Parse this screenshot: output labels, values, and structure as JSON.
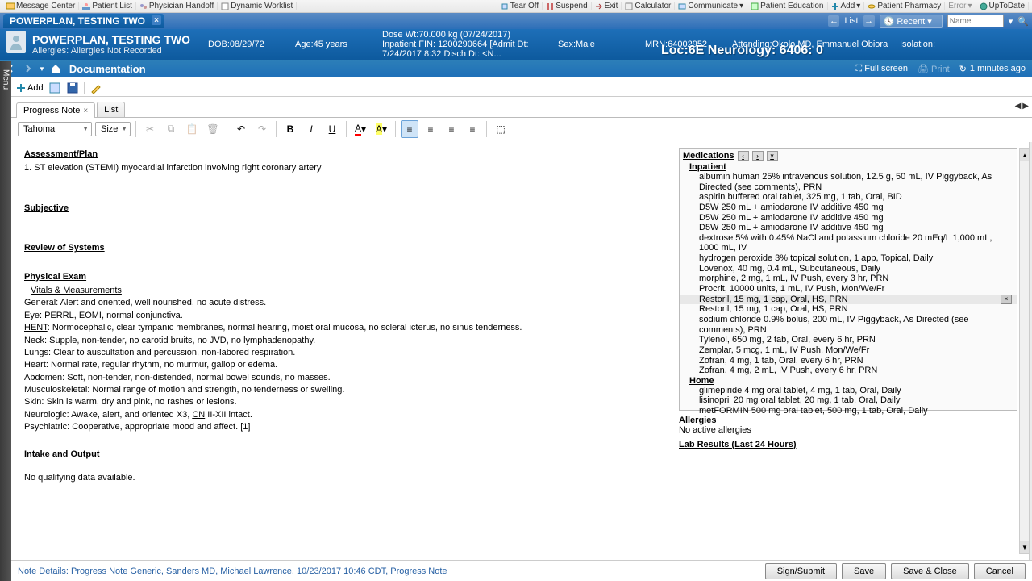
{
  "topmenu": {
    "left": [
      "Message Center",
      "Patient List",
      "Physician Handoff",
      "Dynamic Worklist"
    ],
    "right": [
      "Tear Off",
      "Suspend",
      "Exit",
      "Calculator",
      "Communicate",
      "Patient Education",
      "Add",
      "Patient Pharmacy",
      "Error",
      "UpToDate"
    ]
  },
  "tab": {
    "title": "POWERPLAN, TESTING TWO"
  },
  "listnav": {
    "list": "List",
    "recent": "Recent",
    "namePlaceholder": "Name"
  },
  "patient": {
    "name": "POWERPLAN, TESTING TWO",
    "allergies": "Allergies: Allergies Not Recorded",
    "dob": "DOB:08/29/72",
    "age": "Age:45 years",
    "dosewt": "Dose Wt:70.000 kg (07/24/2017)",
    "sex": "Sex:Male",
    "mrn": "MRN:64002952",
    "attending": "Attending:Okolo MD, Emmanuel Obiora",
    "fin": "Inpatient FIN: 1200290664 [Admit Dt: 7/24/2017 8:32 Disch Dt: <N...",
    "loc": "Loc:6E Neurology: 6406: 0",
    "isolation": "Isolation:"
  },
  "nav": {
    "title": "Documentation",
    "fullscreen": "Full screen",
    "print": "Print",
    "time": "1 minutes ago"
  },
  "toolbar": {
    "add": "Add"
  },
  "tabs": {
    "note": "Progress Note",
    "list": "List"
  },
  "editor": {
    "font": "Tahoma",
    "size": "Size"
  },
  "note": {
    "assessment": "Assessment/Plan",
    "assessmentItem": "1. ST elevation (STEMI) myocardial infarction involving right coronary artery",
    "subjective": "Subjective",
    "ros": "Review of Systems",
    "pe": "Physical Exam",
    "vitals": "Vitals & Measurements",
    "general": "General: Alert and oriented, well nourished, no acute distress.",
    "eye": "Eye: PERRL, EOMI, normal conjunctiva.",
    "hent": "HENT: Normocephalic, clear tympanic membranes, normal hearing, moist oral mucosa, no scleral icterus, no sinus tenderness.",
    "neck": "Neck: Supple, non-tender, no carotid bruits, no JVD, no lymphadenopathy.",
    "lungs": "Lungs: Clear to auscultation and percussion, non-labored respiration.",
    "heart": "Heart: Normal rate, regular rhythm, no murmur, gallop or edema.",
    "abdomen": "Abdomen: Soft, non-tender, non-distended, normal bowel sounds, no masses.",
    "msk": "Musculoskeletal: Normal range of motion and strength, no tenderness or swelling.",
    "skin": "Skin: Skin is warm, dry and pink, no rashes or lesions.",
    "neuro": "Neurologic: Awake, alert, and oriented X3, CN II-XII intact.",
    "psych": "Psychiatric: Cooperative, appropriate mood and affect.   [1]",
    "io": "Intake and Output",
    "iodata": "No qualifying data available."
  },
  "medsHeader": "Medications",
  "medsInpatient": "Inpatient",
  "medsHome": "Home",
  "medsInp": [
    "albumin human 25% intravenous solution, 12.5 g, 50 mL, IV Piggyback, As Directed (see comments), PRN",
    "aspirin buffered oral tablet, 325 mg, 1 tab, Oral, BID",
    "D5W 250 mL + amiodarone IV additive 450 mg",
    "D5W 250 mL + amiodarone IV additive 450 mg",
    "D5W 250 mL + amiodarone IV additive 450 mg",
    "dextrose 5% with 0.45% NaCl and potassium chloride 20 mEq/L 1,000 mL, 1000 mL, IV",
    "hydrogen peroxide 3% topical solution, 1 app, Topical, Daily",
    "Lovenox, 40 mg, 0.4 mL, Subcutaneous, Daily",
    "morphine, 2 mg, 1 mL, IV Push, every 3 hr, PRN",
    "Procrit, 10000 units, 1 mL, IV Push, Mon/We/Fr",
    "Restoril, 15 mg, 1 cap, Oral, HS, PRN",
    "Restoril, 15 mg, 1 cap, Oral, HS, PRN",
    "sodium chloride 0.9% bolus, 200 mL, IV Piggyback, As Directed (see comments), PRN",
    "Tylenol, 650 mg, 2 tab, Oral, every 6 hr, PRN",
    "Zemplar, 5 mcg, 1 mL, IV Push, Mon/We/Fr",
    "Zofran, 4 mg, 1 tab, Oral, every 6 hr, PRN",
    "Zofran, 4 mg, 2 mL, IV Push, every 6 hr, PRN"
  ],
  "medsHm": [
    "glimepiride 4 mg oral tablet, 4 mg, 1 tab, Oral, Daily",
    "lisinopril 20 mg oral tablet, 20 mg, 1 tab, Oral, Daily",
    "metFORMIN 500 mg oral tablet, 500 mg, 1 tab, Oral, Daily"
  ],
  "allergiesH": "Allergies",
  "allergiesT": "No active allergies",
  "labH": "Lab Results (Last 24 Hours)",
  "footer": {
    "det": "Note Details: Progress Note Generic, Sanders MD, Michael Lawrence, 10/23/2017 10:46 CDT, Progress Note",
    "sign": "Sign/Submit",
    "save": "Save",
    "sc": "Save & Close",
    "cancel": "Cancel"
  }
}
